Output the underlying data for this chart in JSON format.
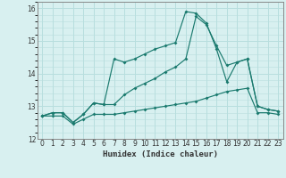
{
  "xlabel": "Humidex (Indice chaleur)",
  "x": [
    0,
    1,
    2,
    3,
    4,
    5,
    6,
    7,
    8,
    9,
    10,
    11,
    12,
    13,
    14,
    15,
    16,
    17,
    18,
    19,
    20,
    21,
    22,
    23
  ],
  "line1": [
    12.7,
    12.8,
    12.8,
    12.5,
    12.75,
    13.1,
    13.05,
    14.45,
    14.35,
    14.45,
    14.6,
    14.75,
    14.85,
    14.95,
    15.9,
    15.85,
    15.55,
    14.75,
    13.75,
    14.35,
    14.45,
    13.0,
    12.9,
    12.85
  ],
  "line2": [
    12.7,
    12.8,
    12.8,
    12.5,
    12.75,
    13.1,
    13.05,
    13.05,
    13.35,
    13.55,
    13.7,
    13.85,
    14.05,
    14.2,
    14.45,
    15.75,
    15.5,
    14.85,
    14.25,
    14.35,
    14.45,
    13.0,
    12.9,
    12.85
  ],
  "line3": [
    12.7,
    12.7,
    12.7,
    12.45,
    12.6,
    12.75,
    12.75,
    12.75,
    12.8,
    12.85,
    12.9,
    12.95,
    13.0,
    13.05,
    13.1,
    13.15,
    13.25,
    13.35,
    13.45,
    13.5,
    13.55,
    12.8,
    12.8,
    12.75
  ],
  "line_color": "#1a7a6e",
  "bg_color": "#d8f0f0",
  "grid_color": "#b8dede",
  "ylim": [
    12,
    16.2
  ],
  "xlim": [
    -0.5,
    23.5
  ],
  "yticks": [
    12,
    13,
    14,
    15,
    16
  ],
  "xticks": [
    0,
    1,
    2,
    3,
    4,
    5,
    6,
    7,
    8,
    9,
    10,
    11,
    12,
    13,
    14,
    15,
    16,
    17,
    18,
    19,
    20,
    21,
    22,
    23
  ]
}
